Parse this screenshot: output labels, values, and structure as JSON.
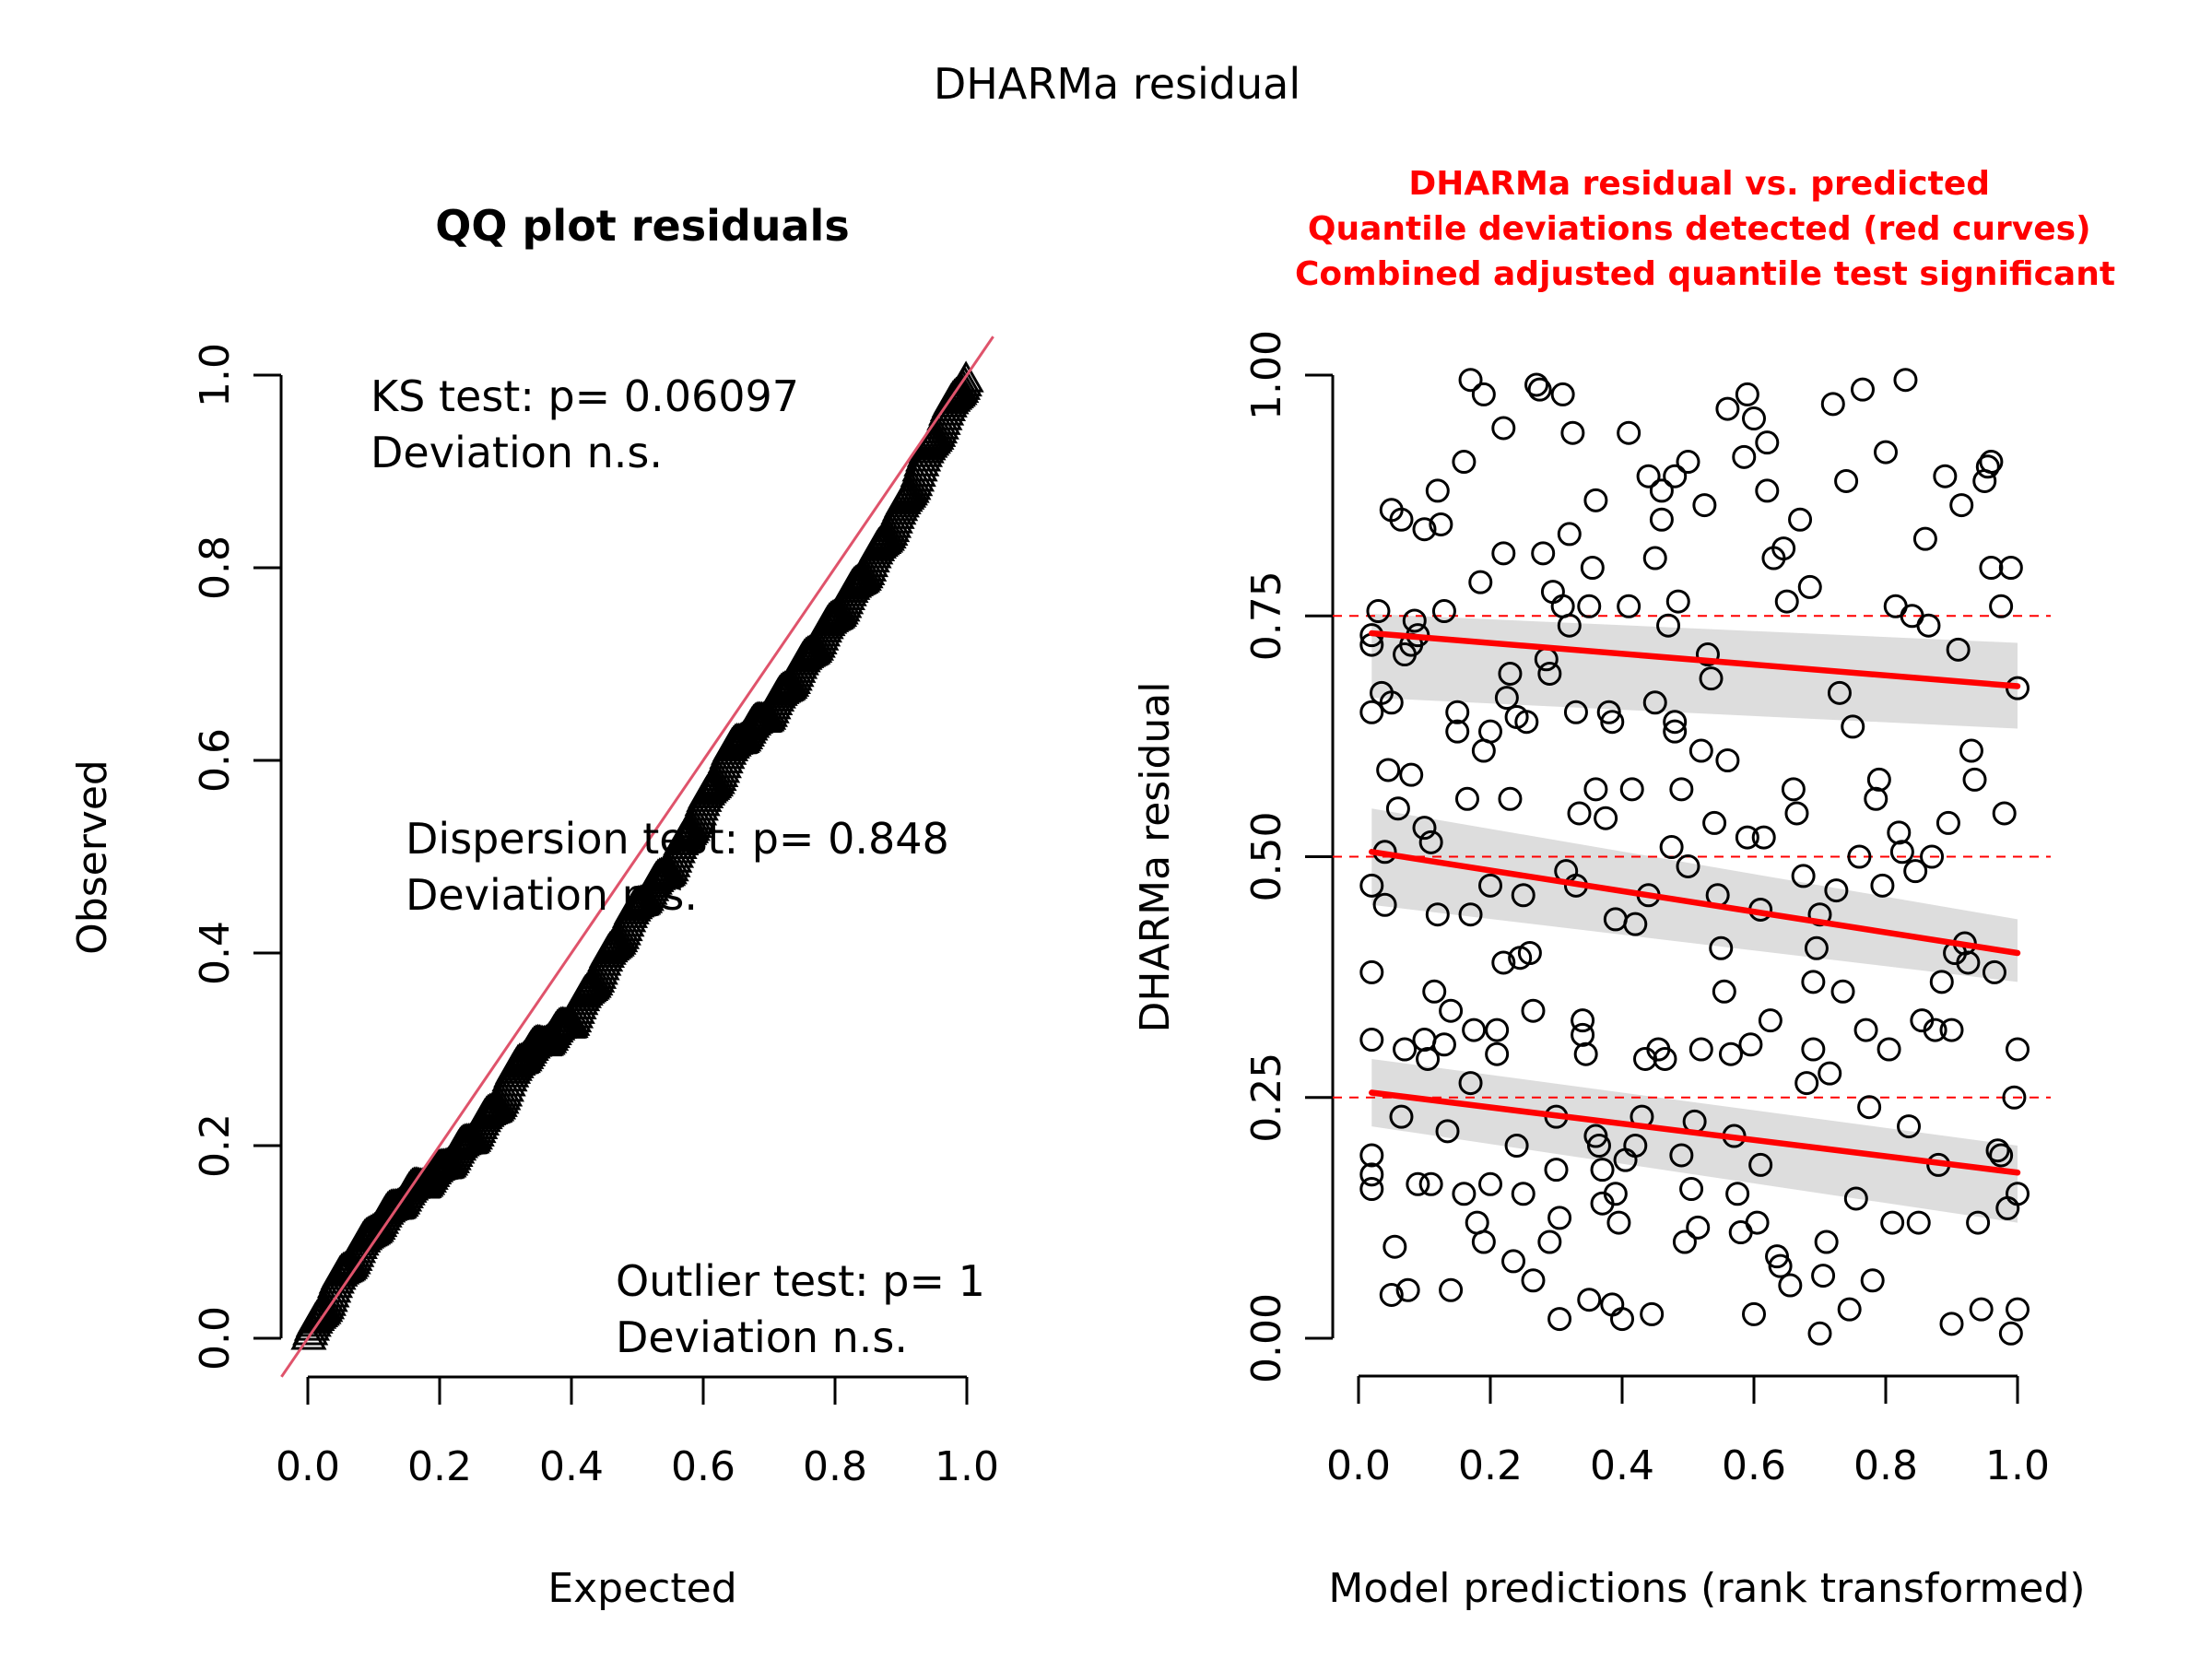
{
  "page_title": "DHARMa residual",
  "chart_data": [
    {
      "type": "scatter",
      "name": "qq-plot",
      "title": "QQ plot residuals",
      "xlabel": "Expected",
      "ylabel": "Observed",
      "xlim": [
        0,
        1
      ],
      "ylim": [
        0,
        1
      ],
      "x_ticks": [
        0.0,
        0.2,
        0.4,
        0.6,
        0.8,
        1.0
      ],
      "x_tick_labels": [
        "0.0",
        "0.2",
        "0.4",
        "0.6",
        "0.8",
        "1.0"
      ],
      "y_ticks": [
        0.0,
        0.2,
        0.4,
        0.6,
        0.8,
        1.0
      ],
      "y_tick_labels": [
        "0.0",
        "0.2",
        "0.4",
        "0.6",
        "0.8",
        "1.0"
      ],
      "marker": "triangle",
      "reference_line": {
        "slope": 1,
        "intercept": 0,
        "color": "#df536b"
      },
      "qq_curve_knots": [
        [
          0.0,
          0.0
        ],
        [
          0.05,
          0.065
        ],
        [
          0.1,
          0.115
        ],
        [
          0.15,
          0.15
        ],
        [
          0.2,
          0.175
        ],
        [
          0.25,
          0.21
        ],
        [
          0.3,
          0.255
        ],
        [
          0.32,
          0.29
        ],
        [
          0.36,
          0.31
        ],
        [
          0.4,
          0.33
        ],
        [
          0.45,
          0.39
        ],
        [
          0.5,
          0.45
        ],
        [
          0.55,
          0.49
        ],
        [
          0.6,
          0.555
        ],
        [
          0.65,
          0.62
        ],
        [
          0.7,
          0.65
        ],
        [
          0.75,
          0.7
        ],
        [
          0.8,
          0.75
        ],
        [
          0.85,
          0.8
        ],
        [
          0.9,
          0.86
        ],
        [
          0.95,
          0.935
        ],
        [
          1.0,
          1.0
        ]
      ],
      "n_points": 400,
      "annotations": [
        {
          "lines": [
            "KS test: p= 0.06097",
            "Deviation  n.s."
          ],
          "position": "top-left"
        },
        {
          "lines": [
            "Dispersion test: p= 0.848",
            "Deviation  n.s."
          ],
          "position": "center"
        },
        {
          "lines": [
            "Outlier test: p= 1",
            "Deviation  n.s."
          ],
          "position": "bottom-right"
        }
      ]
    },
    {
      "type": "scatter",
      "name": "residual-vs-predicted",
      "title_lines": [
        "DHARMa residual vs. predicted",
        "Quantile deviations detected (red curves)",
        "Combined adjusted quantile test significant"
      ],
      "title_color": "#ff0000",
      "xlabel": "Model predictions (rank transformed)",
      "ylabel": "DHARMa residual",
      "xlim": [
        0,
        1
      ],
      "ylim": [
        0,
        1
      ],
      "x_ticks": [
        0.0,
        0.2,
        0.4,
        0.6,
        0.8,
        1.0
      ],
      "x_tick_labels": [
        "0.0",
        "0.2",
        "0.4",
        "0.6",
        "0.8",
        "1.0"
      ],
      "y_ticks": [
        0.0,
        0.25,
        0.5,
        0.75,
        1.0
      ],
      "y_tick_labels": [
        "0.00",
        "0.25",
        "0.50",
        "0.75",
        "1.00"
      ],
      "marker": "open-circle",
      "reference_lines": [
        0.25,
        0.5,
        0.75
      ],
      "reference_line_color": "#ff0000",
      "quantile_fits": [
        {
          "quantile": 0.75,
          "x": [
            0.02,
            1.0
          ],
          "y": [
            0.732,
            0.677
          ],
          "band_lower": [
            0.665,
            0.633
          ],
          "band_upper": [
            0.752,
            0.722
          ]
        },
        {
          "quantile": 0.5,
          "x": [
            0.02,
            1.0
          ],
          "y": [
            0.505,
            0.4
          ],
          "band_lower": [
            0.45,
            0.37
          ],
          "band_upper": [
            0.55,
            0.435
          ]
        },
        {
          "quantile": 0.25,
          "x": [
            0.02,
            1.0
          ],
          "y": [
            0.255,
            0.172
          ],
          "band_lower": [
            0.22,
            0.12
          ],
          "band_upper": [
            0.29,
            0.2
          ]
        }
      ],
      "fit_color": "#ff0000",
      "band_color": "#dddddd",
      "points": [
        [
          0.02,
          0.72
        ],
        [
          0.02,
          0.73
        ],
        [
          0.02,
          0.65
        ],
        [
          0.02,
          0.47
        ],
        [
          0.02,
          0.38
        ],
        [
          0.02,
          0.31
        ],
        [
          0.02,
          0.19
        ],
        [
          0.02,
          0.17
        ],
        [
          0.02,
          0.155
        ],
        [
          0.03,
          0.755
        ],
        [
          0.035,
          0.67
        ],
        [
          0.04,
          0.505
        ],
        [
          0.04,
          0.45
        ],
        [
          0.045,
          0.59
        ],
        [
          0.05,
          0.86
        ],
        [
          0.05,
          0.66
        ],
        [
          0.05,
          0.045
        ],
        [
          0.055,
          0.095
        ],
        [
          0.06,
          0.55
        ],
        [
          0.065,
          0.85
        ],
        [
          0.065,
          0.23
        ],
        [
          0.07,
          0.3
        ],
        [
          0.07,
          0.71
        ],
        [
          0.075,
          0.05
        ],
        [
          0.08,
          0.585
        ],
        [
          0.08,
          0.72
        ],
        [
          0.085,
          0.745
        ],
        [
          0.09,
          0.73
        ],
        [
          0.09,
          0.16
        ],
        [
          0.1,
          0.53
        ],
        [
          0.1,
          0.31
        ],
        [
          0.1,
          0.84
        ],
        [
          0.105,
          0.29
        ],
        [
          0.11,
          0.16
        ],
        [
          0.11,
          0.515
        ],
        [
          0.115,
          0.36
        ],
        [
          0.12,
          0.88
        ],
        [
          0.12,
          0.44
        ],
        [
          0.125,
          0.845
        ],
        [
          0.13,
          0.755
        ],
        [
          0.13,
          0.305
        ],
        [
          0.135,
          0.215
        ],
        [
          0.14,
          0.05
        ],
        [
          0.14,
          0.34
        ],
        [
          0.15,
          0.63
        ],
        [
          0.15,
          0.65
        ],
        [
          0.16,
          0.91
        ],
        [
          0.16,
          0.15
        ],
        [
          0.165,
          0.56
        ],
        [
          0.17,
          0.995
        ],
        [
          0.17,
          0.44
        ],
        [
          0.17,
          0.265
        ],
        [
          0.175,
          0.32
        ],
        [
          0.18,
          0.12
        ],
        [
          0.185,
          0.785
        ],
        [
          0.19,
          0.98
        ],
        [
          0.19,
          0.1
        ],
        [
          0.19,
          0.61
        ],
        [
          0.2,
          0.47
        ],
        [
          0.2,
          0.63
        ],
        [
          0.2,
          0.16
        ],
        [
          0.21,
          0.295
        ],
        [
          0.21,
          0.32
        ],
        [
          0.22,
          0.945
        ],
        [
          0.22,
          0.815
        ],
        [
          0.22,
          0.39
        ],
        [
          0.225,
          0.665
        ],
        [
          0.23,
          0.56
        ],
        [
          0.23,
          0.69
        ],
        [
          0.235,
          0.08
        ],
        [
          0.24,
          0.645
        ],
        [
          0.24,
          0.2
        ],
        [
          0.245,
          0.395
        ],
        [
          0.25,
          0.46
        ],
        [
          0.25,
          0.15
        ],
        [
          0.255,
          0.64
        ],
        [
          0.26,
          0.4
        ],
        [
          0.265,
          0.34
        ],
        [
          0.265,
          0.06
        ],
        [
          0.27,
          0.99
        ],
        [
          0.275,
          0.985
        ],
        [
          0.28,
          0.815
        ],
        [
          0.285,
          0.705
        ],
        [
          0.29,
          0.69
        ],
        [
          0.29,
          0.1
        ],
        [
          0.295,
          0.775
        ],
        [
          0.3,
          0.23
        ],
        [
          0.3,
          0.175
        ],
        [
          0.305,
          0.02
        ],
        [
          0.305,
          0.125
        ],
        [
          0.31,
          0.98
        ],
        [
          0.31,
          0.76
        ],
        [
          0.315,
          0.485
        ],
        [
          0.32,
          0.835
        ],
        [
          0.32,
          0.74
        ],
        [
          0.325,
          0.94
        ],
        [
          0.33,
          0.65
        ],
        [
          0.33,
          0.47
        ],
        [
          0.335,
          0.545
        ],
        [
          0.34,
          0.33
        ],
        [
          0.34,
          0.315
        ],
        [
          0.345,
          0.295
        ],
        [
          0.35,
          0.04
        ],
        [
          0.35,
          0.76
        ],
        [
          0.355,
          0.8
        ],
        [
          0.36,
          0.87
        ],
        [
          0.36,
          0.57
        ],
        [
          0.36,
          0.21
        ],
        [
          0.365,
          0.2
        ],
        [
          0.37,
          0.175
        ],
        [
          0.37,
          0.14
        ],
        [
          0.375,
          0.54
        ],
        [
          0.38,
          0.65
        ],
        [
          0.385,
          0.64
        ],
        [
          0.385,
          0.035
        ],
        [
          0.39,
          0.435
        ],
        [
          0.39,
          0.15
        ],
        [
          0.395,
          0.12
        ],
        [
          0.4,
          0.02
        ],
        [
          0.405,
          0.185
        ],
        [
          0.41,
          0.94
        ],
        [
          0.41,
          0.76
        ],
        [
          0.415,
          0.57
        ],
        [
          0.42,
          0.43
        ],
        [
          0.42,
          0.2
        ],
        [
          0.43,
          0.23
        ],
        [
          0.435,
          0.29
        ],
        [
          0.44,
          0.895
        ],
        [
          0.44,
          0.46
        ],
        [
          0.445,
          0.025
        ],
        [
          0.45,
          0.81
        ],
        [
          0.45,
          0.66
        ],
        [
          0.455,
          0.3
        ],
        [
          0.46,
          0.85
        ],
        [
          0.46,
          0.88
        ],
        [
          0.465,
          0.29
        ],
        [
          0.47,
          0.74
        ],
        [
          0.475,
          0.51
        ],
        [
          0.48,
          0.895
        ],
        [
          0.48,
          0.64
        ],
        [
          0.48,
          0.63
        ],
        [
          0.485,
          0.765
        ],
        [
          0.49,
          0.57
        ],
        [
          0.49,
          0.19
        ],
        [
          0.495,
          0.1
        ],
        [
          0.5,
          0.91
        ],
        [
          0.5,
          0.49
        ],
        [
          0.505,
          0.155
        ],
        [
          0.51,
          0.225
        ],
        [
          0.515,
          0.115
        ],
        [
          0.52,
          0.61
        ],
        [
          0.52,
          0.3
        ],
        [
          0.525,
          0.865
        ],
        [
          0.53,
          0.71
        ],
        [
          0.535,
          0.685
        ],
        [
          0.54,
          0.535
        ],
        [
          0.545,
          0.46
        ],
        [
          0.55,
          0.405
        ],
        [
          0.555,
          0.36
        ],
        [
          0.56,
          0.965
        ],
        [
          0.56,
          0.6
        ],
        [
          0.565,
          0.295
        ],
        [
          0.57,
          0.21
        ],
        [
          0.575,
          0.15
        ],
        [
          0.58,
          0.11
        ],
        [
          0.585,
          0.915
        ],
        [
          0.59,
          0.98
        ],
        [
          0.59,
          0.52
        ],
        [
          0.595,
          0.305
        ],
        [
          0.6,
          0.955
        ],
        [
          0.6,
          0.025
        ],
        [
          0.605,
          0.12
        ],
        [
          0.61,
          0.445
        ],
        [
          0.61,
          0.18
        ],
        [
          0.615,
          0.52
        ],
        [
          0.62,
          0.93
        ],
        [
          0.62,
          0.88
        ],
        [
          0.625,
          0.33
        ],
        [
          0.63,
          0.81
        ],
        [
          0.635,
          0.085
        ],
        [
          0.64,
          0.075
        ],
        [
          0.645,
          0.82
        ],
        [
          0.65,
          0.765
        ],
        [
          0.655,
          0.055
        ],
        [
          0.66,
          0.57
        ],
        [
          0.665,
          0.545
        ],
        [
          0.67,
          0.85
        ],
        [
          0.675,
          0.48
        ],
        [
          0.68,
          0.265
        ],
        [
          0.685,
          0.78
        ],
        [
          0.69,
          0.37
        ],
        [
          0.69,
          0.3
        ],
        [
          0.695,
          0.405
        ],
        [
          0.7,
          0.005
        ],
        [
          0.7,
          0.44
        ],
        [
          0.705,
          0.065
        ],
        [
          0.71,
          0.1
        ],
        [
          0.715,
          0.275
        ],
        [
          0.72,
          0.97
        ],
        [
          0.725,
          0.465
        ],
        [
          0.73,
          0.67
        ],
        [
          0.735,
          0.36
        ],
        [
          0.74,
          0.89
        ],
        [
          0.745,
          0.03
        ],
        [
          0.75,
          0.635
        ],
        [
          0.755,
          0.145
        ],
        [
          0.76,
          0.5
        ],
        [
          0.765,
          0.985
        ],
        [
          0.77,
          0.32
        ],
        [
          0.775,
          0.24
        ],
        [
          0.78,
          0.06
        ],
        [
          0.785,
          0.56
        ],
        [
          0.79,
          0.58
        ],
        [
          0.795,
          0.47
        ],
        [
          0.8,
          0.92
        ],
        [
          0.805,
          0.3
        ],
        [
          0.81,
          0.12
        ],
        [
          0.815,
          0.76
        ],
        [
          0.82,
          0.525
        ],
        [
          0.825,
          0.505
        ],
        [
          0.83,
          0.995
        ],
        [
          0.835,
          0.22
        ],
        [
          0.84,
          0.75
        ],
        [
          0.845,
          0.485
        ],
        [
          0.85,
          0.12
        ],
        [
          0.855,
          0.33
        ],
        [
          0.86,
          0.83
        ],
        [
          0.865,
          0.74
        ],
        [
          0.87,
          0.5
        ],
        [
          0.875,
          0.32
        ],
        [
          0.88,
          0.18
        ],
        [
          0.885,
          0.37
        ],
        [
          0.89,
          0.895
        ],
        [
          0.895,
          0.535
        ],
        [
          0.9,
          0.015
        ],
        [
          0.9,
          0.32
        ],
        [
          0.905,
          0.4
        ],
        [
          0.91,
          0.715
        ],
        [
          0.915,
          0.865
        ],
        [
          0.92,
          0.41
        ],
        [
          0.925,
          0.39
        ],
        [
          0.93,
          0.61
        ],
        [
          0.935,
          0.58
        ],
        [
          0.94,
          0.12
        ],
        [
          0.945,
          0.03
        ],
        [
          0.95,
          0.89
        ],
        [
          0.955,
          0.905
        ],
        [
          0.96,
          0.91
        ],
        [
          0.96,
          0.8
        ],
        [
          0.965,
          0.38
        ],
        [
          0.97,
          0.195
        ],
        [
          0.975,
          0.19
        ],
        [
          0.975,
          0.76
        ],
        [
          0.98,
          0.545
        ],
        [
          0.985,
          0.135
        ],
        [
          0.99,
          0.005
        ],
        [
          0.99,
          0.8
        ],
        [
          0.995,
          0.25
        ],
        [
          1.0,
          0.675
        ],
        [
          1.0,
          0.3
        ],
        [
          1.0,
          0.15
        ],
        [
          1.0,
          0.03
        ]
      ]
    }
  ]
}
